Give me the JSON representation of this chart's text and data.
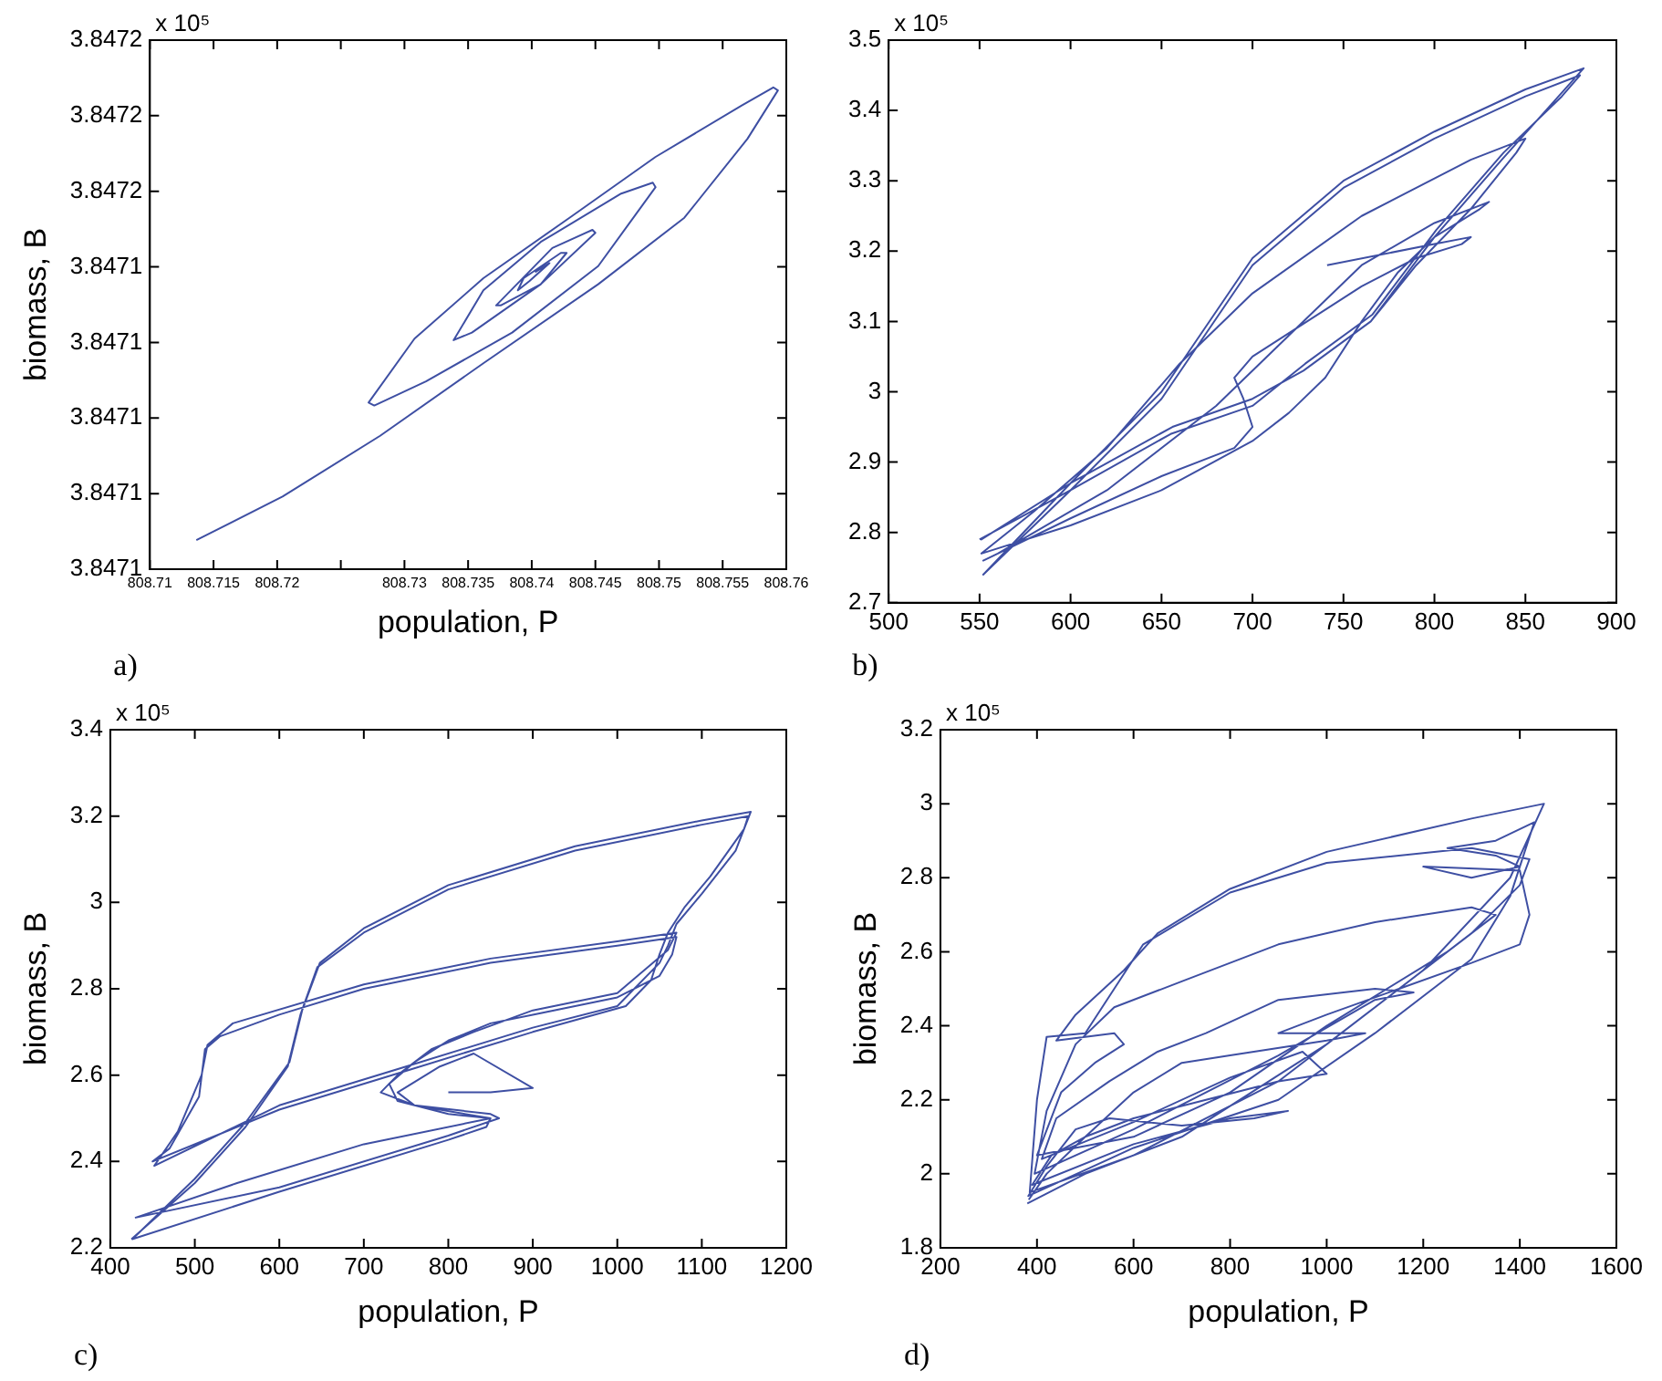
{
  "chart_data": [
    {
      "type": "line",
      "xlabel": "population, P",
      "ylabel": "biomass, B",
      "marker": "none",
      "annotations": [
        "x 10⁵",
        "a)"
      ],
      "xlim": [
        808.71,
        808.76
      ],
      "xticks": [
        808.71,
        808.715,
        808.72,
        {
          "value": 808.725,
          "label": null
        },
        808.73,
        808.735,
        808.74,
        808.745,
        808.75,
        808.755,
        808.76
      ],
      "ylim": [
        3.84706,
        3.8472
      ],
      "yticks": [
        {
          "value": 3.84706,
          "label": "3.8471"
        },
        {
          "value": 3.84708,
          "label": "3.8471"
        },
        {
          "value": 3.8471,
          "label": "3.8471"
        },
        {
          "value": 3.84712,
          "label": "3.8471"
        },
        {
          "value": 3.84714,
          "label": "3.8471"
        },
        {
          "value": 3.84716,
          "label": "3.8472"
        },
        {
          "value": 3.84718,
          "label": "3.8472"
        },
        {
          "value": 3.8472,
          "label": "3.8472"
        }
      ],
      "series": [
        {
          "color": "#3e4fa3",
          "x": [
            808.71365,
            808.72042,
            808.72809,
            808.7362,
            808.74522,
            808.75199,
            808.75695,
            808.75934,
            808.75898,
            808.7565,
            808.74973,
            808.74297,
            808.7362,
            808.73079,
            808.72718,
            808.72763,
            808.73169,
            808.73846,
            808.74522,
            808.74973,
            808.74951,
            808.74703,
            808.74071,
            808.7362,
            808.73386,
            808.7353,
            808.74071,
            808.745,
            808.74477,
            808.74162,
            808.7372,
            808.73756,
            808.74071,
            808.74274,
            808.74229,
            808.73936,
            808.73891,
            808.73981,
            808.74139,
            808.74026
          ],
          "values": [
            3.8470677,
            3.8470792,
            3.8470953,
            3.8471145,
            3.8471354,
            3.847153,
            3.8471739,
            3.8471867,
            3.8471875,
            3.8471827,
            3.8471691,
            3.847153,
            3.847137,
            3.847121,
            3.8471041,
            3.8471033,
            3.8471097,
            3.8471226,
            3.8471402,
            3.8471611,
            3.8471623,
            3.8471594,
            3.8471466,
            3.8471338,
            3.8471206,
            3.8471226,
            3.8471354,
            3.847149,
            3.8471498,
            3.847145,
            3.8471298,
            3.8471298,
            3.8471354,
            3.8471437,
            3.8471437,
            3.847137,
            3.8471338,
            3.8471362,
            3.847141,
            3.8471386
          ]
        }
      ]
    },
    {
      "type": "line",
      "marker": "none",
      "annotations": [
        "x 10⁵",
        "b)"
      ],
      "xlim": [
        500,
        900
      ],
      "xticks": [
        500,
        550,
        600,
        650,
        700,
        750,
        800,
        850,
        900
      ],
      "ylim": [
        2.7,
        3.5
      ],
      "yticks": [
        2.7,
        2.8,
        2.9,
        3,
        3.1,
        3.2,
        3.3,
        3.4,
        3.5
      ],
      "series": [
        {
          "color": "#3e4fa3",
          "x": [
            741,
            800,
            820,
            815,
            790,
            760,
            730,
            700,
            690,
            695,
            700,
            690,
            650,
            600,
            552,
            560,
            620,
            680,
            720,
            760,
            800,
            830,
            825,
            800,
            780,
            760,
            740,
            720,
            700,
            650,
            600,
            551,
            580,
            620,
            660,
            700,
            760,
            820,
            850,
            845,
            820,
            790,
            765,
            728,
            700,
            656,
            600,
            551,
            600,
            650,
            700,
            750,
            800,
            850,
            882,
            837,
            800,
            765,
            728,
            700,
            656,
            600,
            552,
            600,
            650,
            700,
            750,
            800,
            850,
            880,
            870,
            838,
            801,
            766,
            729,
            700,
            655,
            600,
            550
          ],
          "values": [
            3.18,
            3.21,
            3.22,
            3.21,
            3.19,
            3.15,
            3.1,
            3.05,
            3.02,
            2.99,
            2.95,
            2.92,
            2.88,
            2.82,
            2.76,
            2.77,
            2.86,
            2.98,
            3.08,
            3.18,
            3.24,
            3.27,
            3.26,
            3.22,
            3.17,
            3.1,
            3.02,
            2.97,
            2.93,
            2.86,
            2.81,
            2.77,
            2.83,
            2.92,
            3.04,
            3.14,
            3.25,
            3.33,
            3.36,
            3.34,
            3.26,
            3.18,
            3.1,
            3.03,
            2.99,
            2.95,
            2.87,
            2.79,
            2.87,
            3.0,
            3.19,
            3.3,
            3.37,
            3.43,
            3.46,
            3.33,
            3.22,
            3.1,
            3.03,
            2.99,
            2.95,
            2.87,
            2.74,
            2.86,
            2.99,
            3.18,
            3.29,
            3.36,
            3.42,
            3.45,
            3.42,
            3.34,
            3.23,
            3.11,
            3.04,
            2.98,
            2.94,
            2.86,
            2.79
          ]
        }
      ]
    },
    {
      "type": "line",
      "xlabel": "population, P",
      "ylabel": "biomass, B",
      "marker": "none",
      "annotations": [
        "x 10⁵",
        "c)"
      ],
      "xlim": [
        400,
        1200
      ],
      "xticks": [
        400,
        500,
        600,
        700,
        800,
        900,
        1000,
        1100,
        1200
      ],
      "ylim": [
        2.2,
        3.4
      ],
      "yticks": [
        2.2,
        2.4,
        2.6,
        2.8,
        3,
        3.2,
        3.4
      ],
      "series": [
        {
          "color": "#3e4fa3",
          "x": [
            425,
            500,
            560,
            610,
            625,
            645,
            700,
            800,
            950,
            1100,
            1155,
            1150,
            1110,
            1080,
            1060,
            1050,
            1040,
            1010,
            900,
            750,
            600,
            450,
            470,
            505,
            512,
            530,
            600,
            700,
            850,
            1000,
            1070,
            1065,
            1050,
            1000,
            900,
            850,
            800,
            760,
            730,
            740,
            800,
            850,
            845,
            800,
            600,
            426,
            500,
            560,
            612,
            627,
            648,
            700,
            800,
            950,
            1100,
            1158,
            1140,
            1100,
            1070,
            1060,
            1050,
            1000,
            900,
            750,
            600,
            452,
            480,
            508,
            515,
            545,
            700,
            850,
            1000,
            1070,
            1060,
            1000,
            900,
            830,
            780,
            740,
            720,
            760,
            850,
            860,
            800,
            600,
            430,
            550,
            700,
            850,
            760,
            740,
            790,
            830,
            900,
            850,
            800
          ],
          "values": [
            2.22,
            2.35,
            2.48,
            2.62,
            2.74,
            2.85,
            2.93,
            3.03,
            3.12,
            3.18,
            3.2,
            3.17,
            3.06,
            2.99,
            2.93,
            2.88,
            2.82,
            2.76,
            2.7,
            2.61,
            2.52,
            2.4,
            2.43,
            2.55,
            2.66,
            2.69,
            2.74,
            2.8,
            2.86,
            2.9,
            2.92,
            2.88,
            2.83,
            2.78,
            2.74,
            2.72,
            2.68,
            2.63,
            2.58,
            2.54,
            2.51,
            2.5,
            2.48,
            2.45,
            2.33,
            2.22,
            2.36,
            2.49,
            2.63,
            2.75,
            2.86,
            2.94,
            3.04,
            3.13,
            3.19,
            3.21,
            3.12,
            3.02,
            2.95,
            2.9,
            2.86,
            2.76,
            2.71,
            2.62,
            2.53,
            2.39,
            2.47,
            2.6,
            2.67,
            2.72,
            2.81,
            2.87,
            2.91,
            2.93,
            2.89,
            2.79,
            2.75,
            2.7,
            2.66,
            2.6,
            2.56,
            2.53,
            2.51,
            2.5,
            2.46,
            2.34,
            2.27,
            2.35,
            2.44,
            2.5,
            2.53,
            2.56,
            2.62,
            2.65,
            2.57,
            2.56,
            2.56
          ]
        }
      ]
    },
    {
      "type": "line",
      "xlabel": "population, P",
      "ylabel": "biomass, B",
      "marker": "none",
      "annotations": [
        "x 10⁵",
        "d)"
      ],
      "xlim": [
        200,
        1600
      ],
      "xticks": [
        200,
        400,
        600,
        800,
        1000,
        1200,
        1400,
        1600
      ],
      "ylim": [
        1.8,
        3.2
      ],
      "yticks": [
        1.8,
        2,
        2.2,
        2.4,
        2.6,
        2.8,
        3,
        3.2
      ],
      "series": [
        {
          "color": "#3e4fa3",
          "x": [
            380,
            500,
            700,
            1000,
            1300,
            1400,
            1420,
            1300,
            1000,
            800,
            620,
            560,
            500,
            420,
            400,
            385,
            600,
            900,
            1200,
            1380,
            1450,
            1300,
            1000,
            800,
            650,
            580,
            480,
            440,
            560,
            580,
            520,
            450,
            400,
            600,
            800,
            1000,
            1250,
            1350,
            1300,
            1100,
            900,
            700,
            560,
            480,
            420,
            395,
            600,
            900,
            1100,
            1180,
            1100,
            900,
            750,
            650,
            550,
            440,
            410,
            600,
            800,
            950,
            1000,
            900,
            750,
            600,
            500,
            430,
            390,
            600,
            800,
            920,
            850,
            700,
            550,
            480,
            420,
            382,
            600,
            900,
            1100,
            1300,
            1380,
            1430,
            1350,
            1250,
            1350,
            1400,
            1300,
            1200,
            1400,
            1420,
            1400,
            1300,
            1150,
            1000,
            900,
            1080,
            1000,
            800,
            700,
            600,
            500,
            420,
            383
          ],
          "values": [
            1.92,
            2.0,
            2.1,
            2.35,
            2.65,
            2.78,
            2.85,
            2.88,
            2.84,
            2.76,
            2.62,
            2.5,
            2.38,
            2.37,
            2.2,
            1.95,
            2.05,
            2.25,
            2.55,
            2.8,
            3.0,
            2.96,
            2.87,
            2.77,
            2.65,
            2.55,
            2.43,
            2.36,
            2.38,
            2.35,
            2.3,
            2.22,
            2.05,
            2.1,
            2.22,
            2.4,
            2.6,
            2.7,
            2.72,
            2.68,
            2.62,
            2.52,
            2.45,
            2.35,
            2.17,
            2.0,
            2.12,
            2.32,
            2.47,
            2.49,
            2.5,
            2.47,
            2.38,
            2.33,
            2.25,
            2.15,
            2.04,
            2.14,
            2.26,
            2.33,
            2.27,
            2.25,
            2.2,
            2.15,
            2.1,
            2.05,
            1.97,
            2.08,
            2.15,
            2.17,
            2.15,
            2.13,
            2.15,
            2.12,
            2.02,
            1.94,
            2.07,
            2.2,
            2.38,
            2.58,
            2.75,
            2.95,
            2.9,
            2.88,
            2.86,
            2.83,
            2.8,
            2.83,
            2.82,
            2.7,
            2.62,
            2.57,
            2.5,
            2.43,
            2.38,
            2.38,
            2.36,
            2.32,
            2.3,
            2.22,
            2.1,
            2.0,
            1.93
          ]
        }
      ]
    }
  ]
}
